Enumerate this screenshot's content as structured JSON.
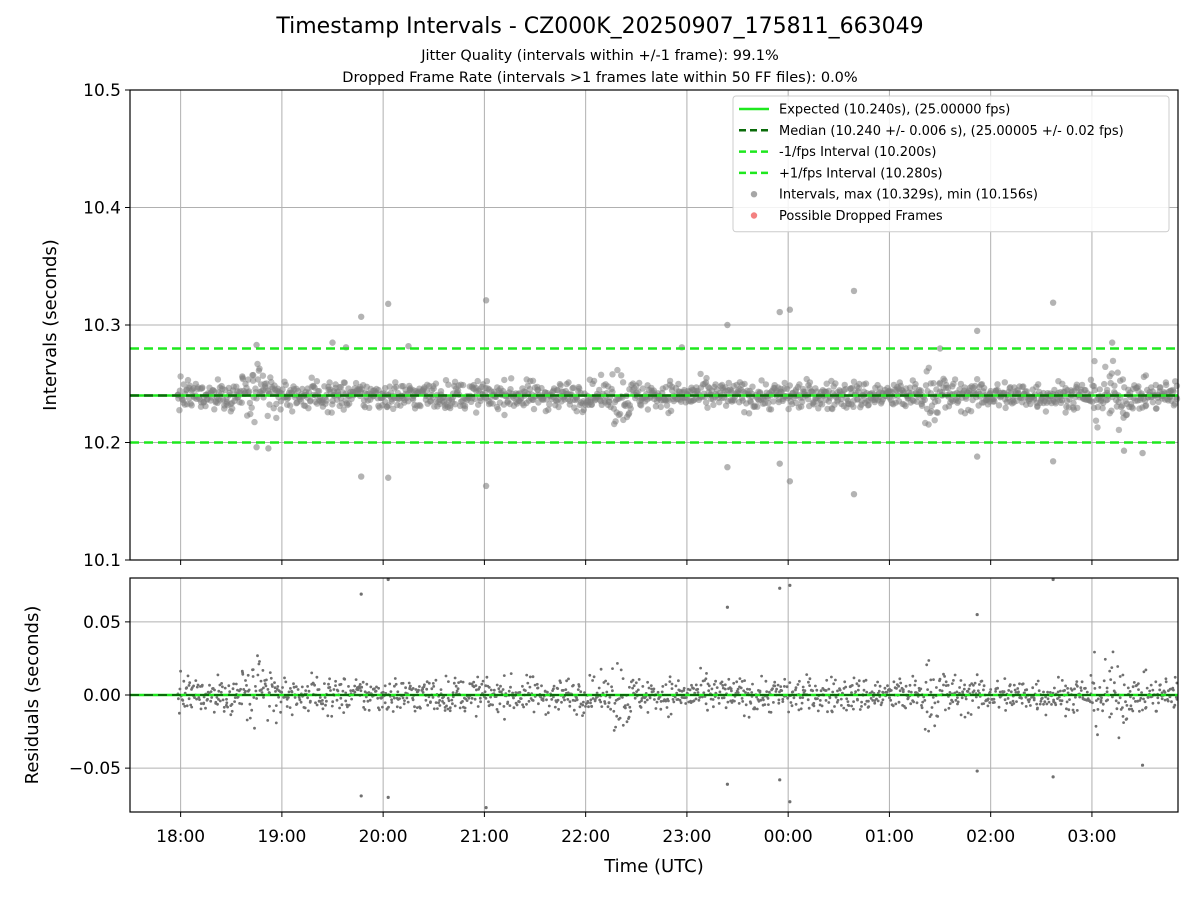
{
  "title": "Timestamp Intervals - CZ000K_20250907_175811_663049",
  "subtitle_1": "Jitter Quality (intervals within +/-1 frame): 99.1%",
  "subtitle_2": "Dropped Frame Rate (intervals >1 frames late within 50 FF files): 0.0%",
  "colors": {
    "expected": "#1ee81e",
    "median": "#0a6b0a",
    "interval_band": "#1ee81e",
    "points": "#808080",
    "dropped": "#f06060",
    "grid": "#b0b0b0"
  },
  "chart_data": [
    {
      "type": "scatter",
      "panel": "intervals",
      "ylabel": "Intervals (seconds)",
      "ylim": [
        10.1,
        10.5
      ],
      "yticks": [
        "10.1",
        "10.2",
        "10.3",
        "10.4",
        "10.5"
      ],
      "ytick_values": [
        10.1,
        10.2,
        10.3,
        10.4,
        10.5
      ],
      "xlim_hours": [
        17.5,
        27.85
      ],
      "grid": true,
      "legend_placement": "top-right",
      "legend": [
        {
          "label": "Expected (10.240s), (25.00000 fps)",
          "kind": "solid",
          "color": "#1ee81e"
        },
        {
          "label": "Median (10.240 +/- 0.006 s), (25.00005 +/- 0.02 fps)",
          "kind": "dashed",
          "color": "#0a6b0a"
        },
        {
          "label": "-1/fps Interval (10.200s)",
          "kind": "dashed",
          "color": "#1ee81e"
        },
        {
          "label": "+1/fps Interval (10.280s)",
          "kind": "dashed",
          "color": "#1ee81e"
        },
        {
          "label": "Intervals, max (10.329s), min (10.156s)",
          "kind": "dot",
          "color": "#909090"
        },
        {
          "label": "Possible Dropped Frames",
          "kind": "dot",
          "color": "#f06060"
        }
      ],
      "reference_lines": {
        "expected": 10.24,
        "median": 10.24,
        "minus_1_fps": 10.2,
        "plus_1_fps": 10.28
      },
      "series_summary": {
        "center": 10.24,
        "max": 10.329,
        "min": 10.156,
        "time_start": "17:58",
        "time_end": "03:51"
      },
      "outliers": [
        {
          "time": "18:45",
          "value": 10.283
        },
        {
          "time": "18:45",
          "value": 10.196
        },
        {
          "time": "18:52",
          "value": 10.195
        },
        {
          "time": "19:30",
          "value": 10.285
        },
        {
          "time": "19:38",
          "value": 10.281
        },
        {
          "time": "19:47",
          "value": 10.307
        },
        {
          "time": "19:47",
          "value": 10.171
        },
        {
          "time": "20:03",
          "value": 10.318
        },
        {
          "time": "20:03",
          "value": 10.17
        },
        {
          "time": "20:15",
          "value": 10.282
        },
        {
          "time": "21:01",
          "value": 10.321
        },
        {
          "time": "21:01",
          "value": 10.163
        },
        {
          "time": "22:57",
          "value": 10.281
        },
        {
          "time": "23:24",
          "value": 10.3
        },
        {
          "time": "23:24",
          "value": 10.179
        },
        {
          "time": "23:55",
          "value": 10.311
        },
        {
          "time": "23:55",
          "value": 10.182
        },
        {
          "time": "00:01",
          "value": 10.313
        },
        {
          "time": "00:01",
          "value": 10.167
        },
        {
          "time": "00:39",
          "value": 10.329
        },
        {
          "time": "00:39",
          "value": 10.156
        },
        {
          "time": "01:30",
          "value": 10.28
        },
        {
          "time": "01:52",
          "value": 10.295
        },
        {
          "time": "01:52",
          "value": 10.188
        },
        {
          "time": "02:37",
          "value": 10.319
        },
        {
          "time": "02:37",
          "value": 10.184
        },
        {
          "time": "03:12",
          "value": 10.285
        },
        {
          "time": "03:19",
          "value": 10.193
        },
        {
          "time": "03:30",
          "value": 10.191
        }
      ]
    },
    {
      "type": "scatter",
      "panel": "residuals",
      "xlabel": "Time (UTC)",
      "ylabel": "Residuals (seconds)",
      "ylim": [
        -0.08,
        0.08
      ],
      "yticks": [
        "−0.05",
        "0.00",
        "0.05"
      ],
      "ytick_values": [
        -0.05,
        0.0,
        0.05
      ],
      "xticks": [
        "18:00",
        "19:00",
        "20:00",
        "21:00",
        "22:00",
        "23:00",
        "00:00",
        "01:00",
        "02:00",
        "03:00"
      ],
      "xtick_hours": [
        18,
        19,
        20,
        21,
        22,
        23,
        24,
        25,
        26,
        27
      ],
      "xlim_hours": [
        17.5,
        27.85
      ],
      "grid": true,
      "reference_lines": {
        "zero": 0.0
      },
      "series_summary": {
        "center": 0.0,
        "max": 0.089,
        "min": -0.084
      },
      "outliers": [
        {
          "time": "19:47",
          "value": 0.069
        },
        {
          "time": "19:47",
          "value": -0.069
        },
        {
          "time": "20:03",
          "value": 0.079
        },
        {
          "time": "20:03",
          "value": -0.07
        },
        {
          "time": "21:01",
          "value": -0.077
        },
        {
          "time": "23:24",
          "value": 0.06
        },
        {
          "time": "23:24",
          "value": -0.061
        },
        {
          "time": "23:55",
          "value": 0.073
        },
        {
          "time": "23:55",
          "value": -0.058
        },
        {
          "time": "00:01",
          "value": 0.075
        },
        {
          "time": "00:01",
          "value": -0.073
        },
        {
          "time": "01:52",
          "value": 0.055
        },
        {
          "time": "01:52",
          "value": -0.052
        },
        {
          "time": "02:37",
          "value": 0.079
        },
        {
          "time": "02:37",
          "value": -0.056
        },
        {
          "time": "03:30",
          "value": -0.048
        }
      ]
    }
  ]
}
